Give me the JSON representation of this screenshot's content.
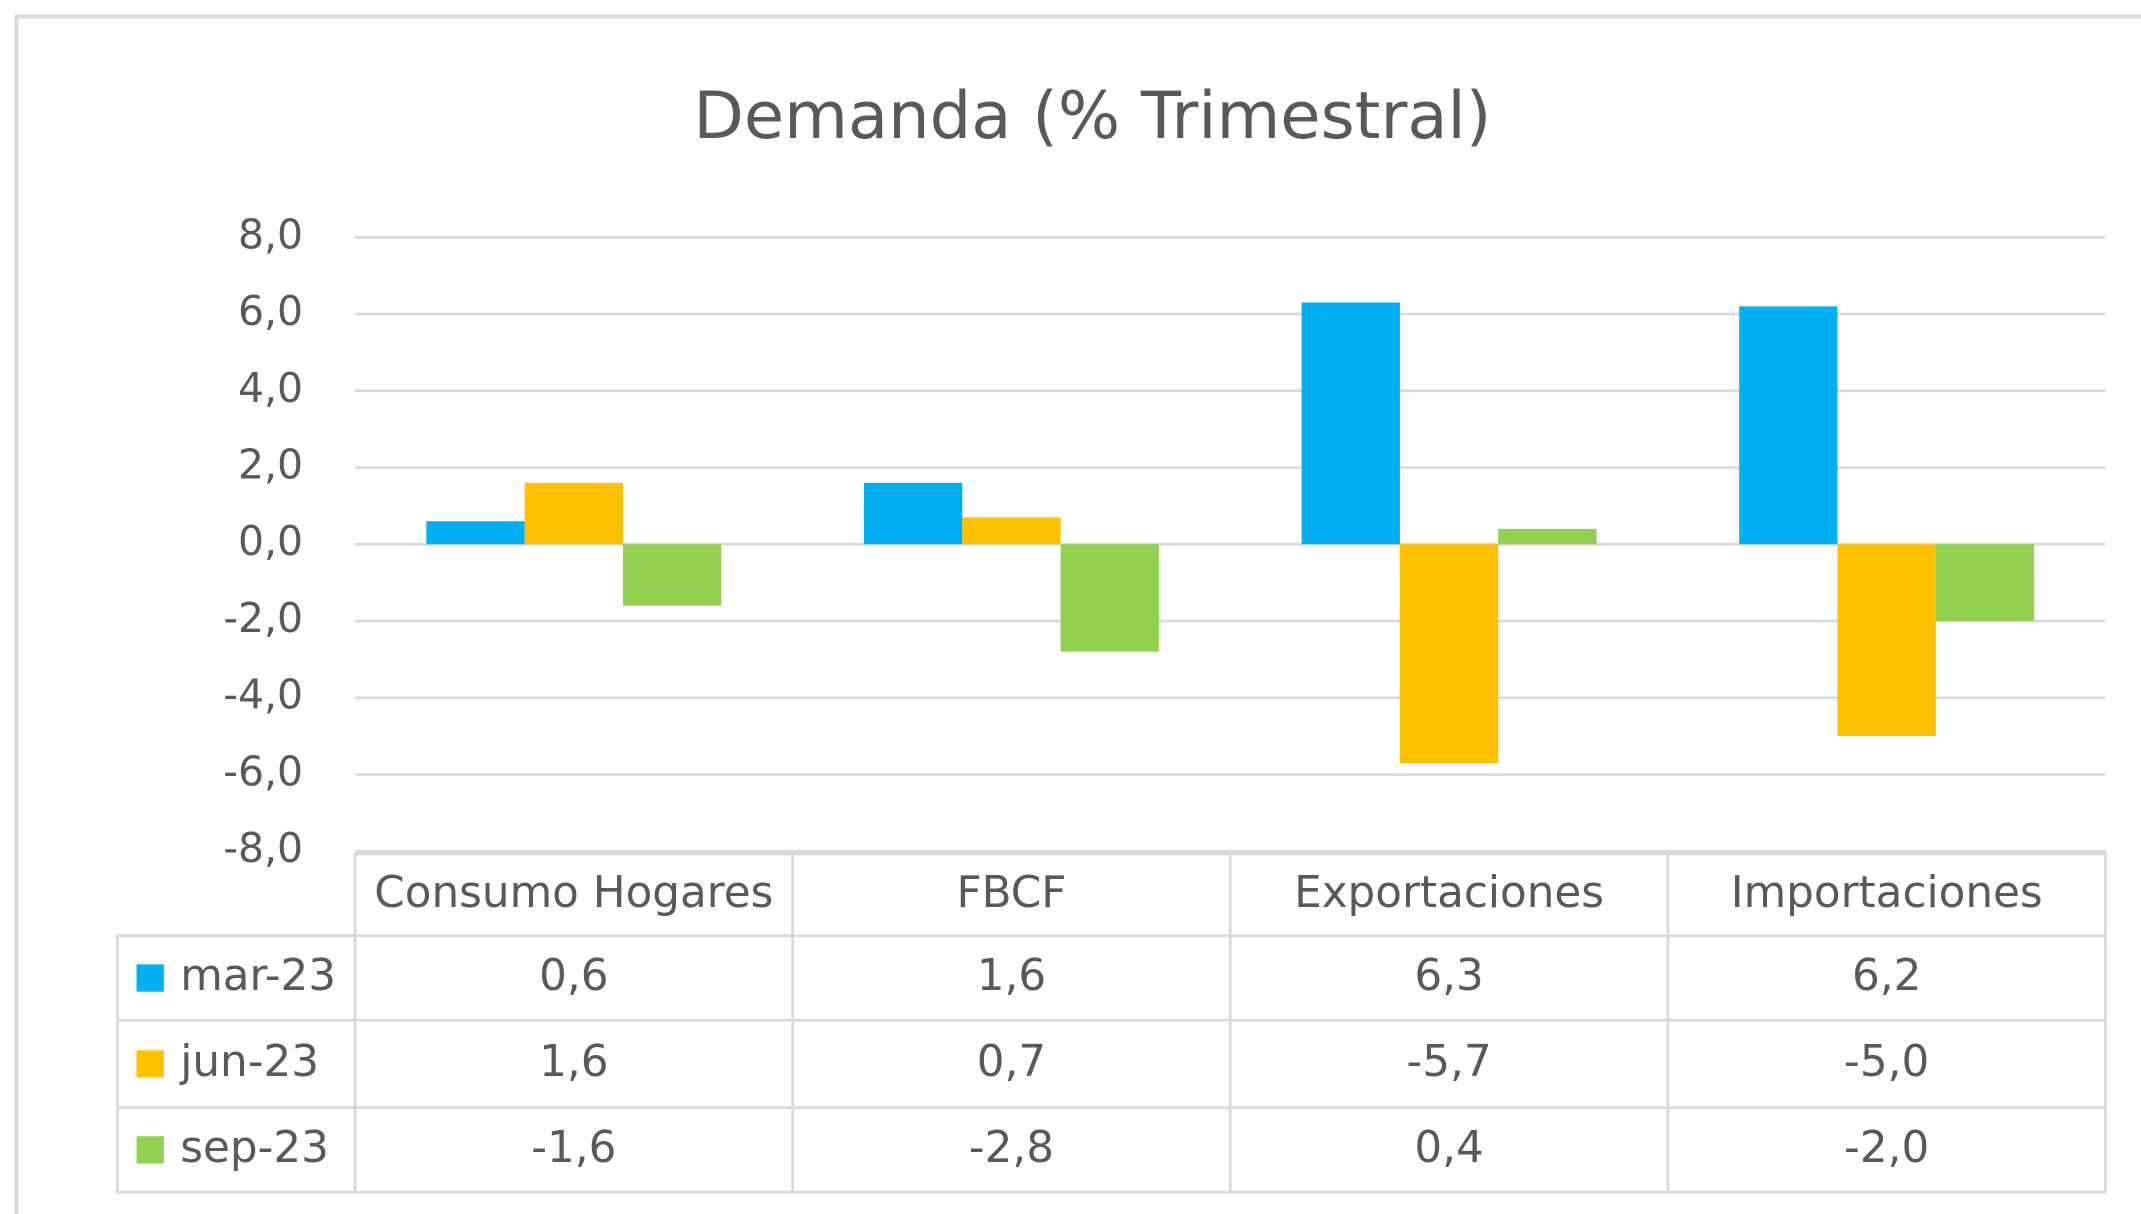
{
  "chart_data": {
    "type": "bar",
    "title": "Demanda (% Trimestral)",
    "categories": [
      "Consumo Hogares",
      "FBCF",
      "Exportaciones",
      "Importaciones"
    ],
    "series": [
      {
        "name": "mar-23",
        "color": "#00b0f0",
        "values": [
          0.6,
          1.6,
          6.3,
          6.2
        ],
        "value_labels": [
          "0,6",
          "1,6",
          "6,3",
          "6,2"
        ]
      },
      {
        "name": "jun-23",
        "color": "#ffc000",
        "values": [
          1.6,
          0.7,
          -5.7,
          -5.0
        ],
        "value_labels": [
          "1,6",
          "0,7",
          "-5,7",
          "-5,0"
        ]
      },
      {
        "name": "sep-23",
        "color": "#92d050",
        "values": [
          -1.6,
          -2.8,
          0.4,
          -2.0
        ],
        "value_labels": [
          "-1,6",
          "-2,8",
          "0,4",
          "-2,0"
        ]
      }
    ],
    "ylim": [
      -8,
      8
    ],
    "yticks": [
      {
        "value": -8,
        "label": "-8,0"
      },
      {
        "value": -6,
        "label": "-6,0"
      },
      {
        "value": -4,
        "label": "-4,0"
      },
      {
        "value": -2,
        "label": "-2,0"
      },
      {
        "value": 0,
        "label": "0,0"
      },
      {
        "value": 2,
        "label": "2,0"
      },
      {
        "value": 4,
        "label": "4,0"
      },
      {
        "value": 6,
        "label": "6,0"
      },
      {
        "value": 8,
        "label": "8,0"
      }
    ],
    "grid": true
  }
}
